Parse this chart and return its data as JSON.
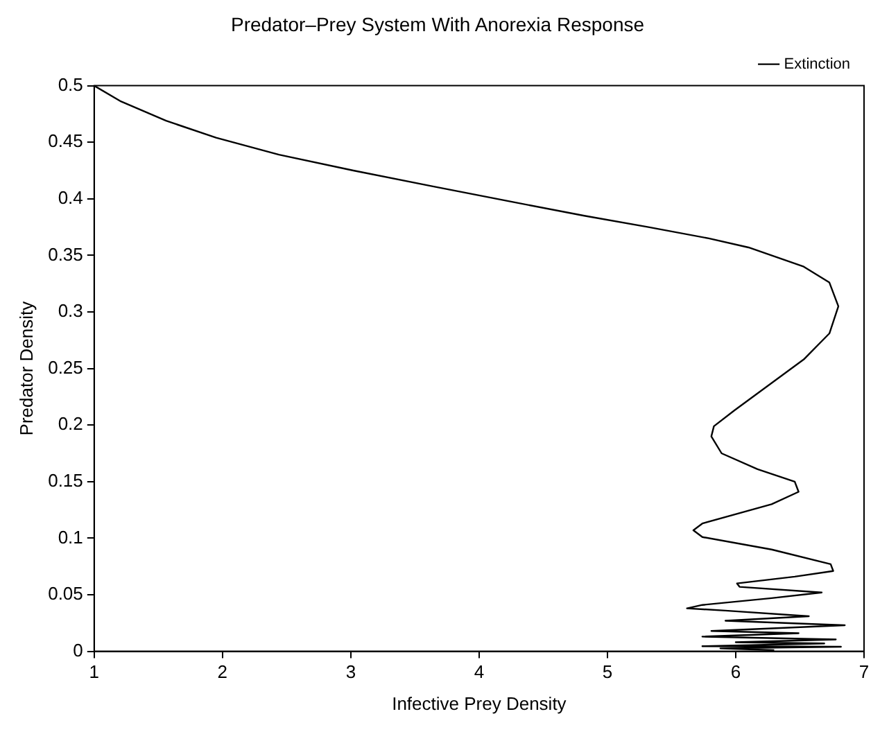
{
  "chart_data": {
    "type": "line",
    "title": "Predator–Prey System With Anorexia Response",
    "xlabel": "Infective Prey Density",
    "ylabel": "Predator Density",
    "xlim": [
      1,
      7
    ],
    "xticks": [
      1,
      2,
      3,
      4,
      5,
      6,
      7
    ],
    "ylim": [
      0,
      0.5
    ],
    "yticks": [
      0,
      0.05,
      0.1,
      0.15,
      0.2,
      0.25,
      0.3,
      0.35,
      0.4,
      0.45,
      0.5
    ],
    "grid": false,
    "legend": "top right",
    "marker": "none",
    "line_style": "solid",
    "series": [
      {
        "name": "Extinction",
        "color": "#000000",
        "x": [
          1,
          1.21,
          1.56,
          1.95,
          2.44,
          3.02,
          3.64,
          4.27,
          4.82,
          5.32,
          5.79,
          6.1,
          6.53,
          6.73,
          6.8,
          6.73,
          6.53,
          5.99,
          5.83,
          5.81,
          5.89,
          6.17,
          6.46,
          6.49,
          6.28,
          5.74,
          5.67,
          5.74,
          6.28,
          6.74,
          6.76,
          6.46,
          6.01,
          6.03,
          6.67,
          6.28,
          5.74,
          5.62,
          5.92,
          6.57,
          5.92,
          6.85,
          5.81,
          6.49,
          5.74,
          6.78,
          6.0,
          6.69,
          5.74,
          6.82,
          5.88,
          6.3
        ],
        "values": [
          0.5,
          0.486,
          0.469,
          0.454,
          0.439,
          0.425,
          0.411,
          0.397,
          0.385,
          0.375,
          0.365,
          0.357,
          0.34,
          0.326,
          0.305,
          0.281,
          0.258,
          0.213,
          0.199,
          0.19,
          0.175,
          0.161,
          0.15,
          0.141,
          0.13,
          0.113,
          0.107,
          0.101,
          0.09,
          0.077,
          0.071,
          0.066,
          0.06,
          0.057,
          0.052,
          0.047,
          0.041,
          0.038,
          0.036,
          0.031,
          0.027,
          0.023,
          0.018,
          0.016,
          0.013,
          0.0105,
          0.008,
          0.007,
          0.0045,
          0.004,
          0.0026,
          0.001
        ]
      }
    ]
  }
}
